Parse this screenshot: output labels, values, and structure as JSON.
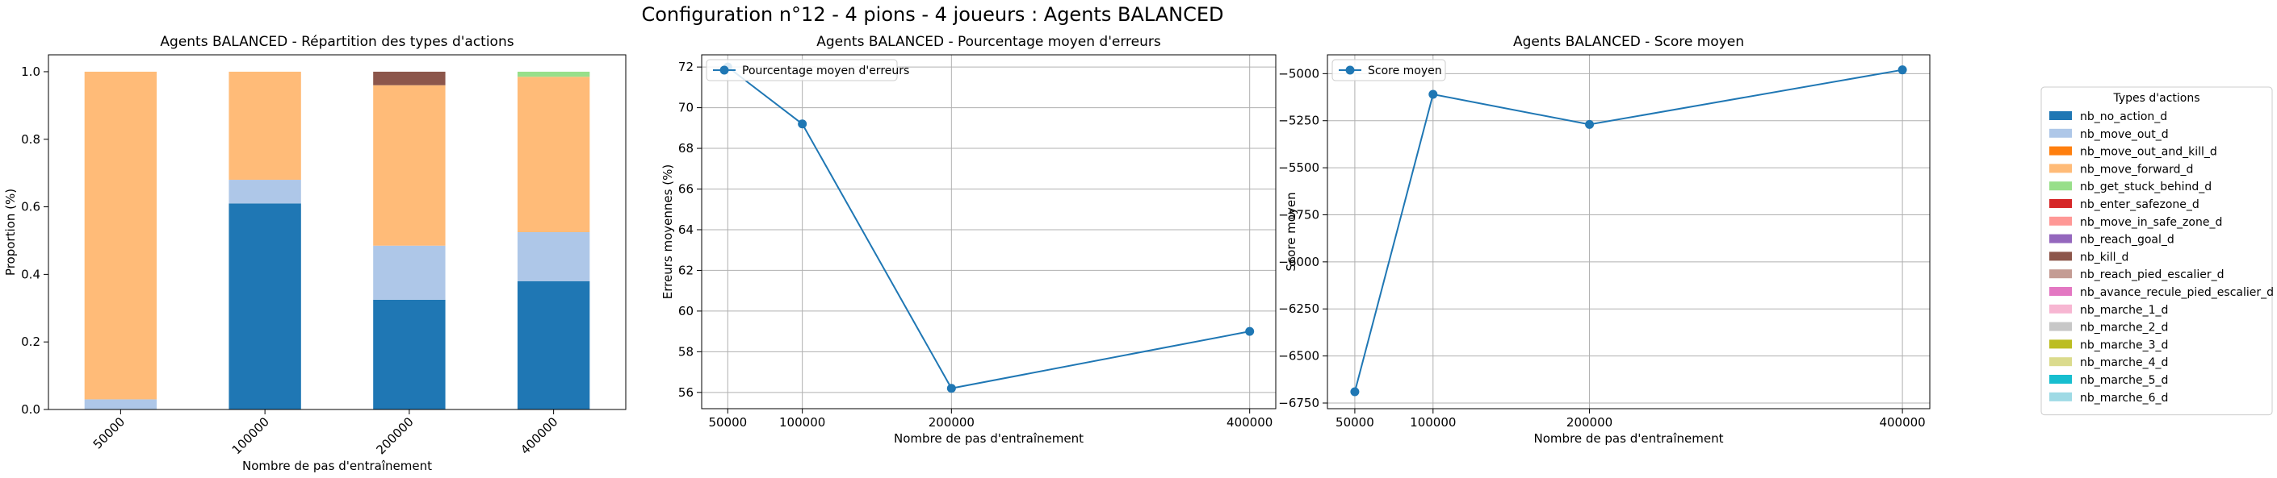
{
  "suptitle": "Configuration n°12 - 4 pions - 4 joueurs : Agents BALANCED",
  "chart_data": [
    {
      "type": "bar",
      "stacked": true,
      "title": "Agents BALANCED - Répartition des types d'actions",
      "xlabel": "Nombre de pas d'entraînement",
      "ylabel": "Proportion (%)",
      "ylim": [
        0,
        1.05
      ],
      "yticks": [
        "0.0",
        "0.2",
        "0.4",
        "0.6",
        "0.8",
        "1.0"
      ],
      "categories": [
        "50000",
        "100000",
        "200000",
        "400000"
      ],
      "series": [
        {
          "name": "nb_no_action_d",
          "color": "#1f77b4",
          "values": [
            0.0,
            0.61,
            0.325,
            0.38
          ]
        },
        {
          "name": "nb_move_out_d",
          "color": "#aec7e8",
          "values": [
            0.03,
            0.07,
            0.16,
            0.145
          ]
        },
        {
          "name": "nb_move_out_and_kill_d",
          "color": "#ff7f0e",
          "values": [
            0,
            0,
            0,
            0
          ]
        },
        {
          "name": "nb_move_forward_d",
          "color": "#ffbb78",
          "values": [
            0.97,
            0.32,
            0.475,
            0.46
          ]
        },
        {
          "name": "nb_get_stuck_behind_d",
          "color": "#98df8a",
          "values": [
            0,
            0,
            0,
            0.015
          ]
        },
        {
          "name": "nb_enter_safezone_d",
          "color": "#d62728",
          "values": [
            0,
            0,
            0,
            0
          ]
        },
        {
          "name": "nb_move_in_safe_zone_d",
          "color": "#ff9896",
          "values": [
            0,
            0,
            0,
            0
          ]
        },
        {
          "name": "nb_reach_goal_d",
          "color": "#9467bd",
          "values": [
            0,
            0,
            0,
            0
          ]
        },
        {
          "name": "nb_kill_d",
          "color": "#8c564b",
          "values": [
            0,
            0,
            0.04,
            0
          ]
        },
        {
          "name": "nb_reach_pied_escalier_d",
          "color": "#c49c94",
          "values": [
            0,
            0,
            0,
            0
          ]
        },
        {
          "name": "nb_avance_recule_pied_escalier_d",
          "color": "#e377c2",
          "values": [
            0,
            0,
            0,
            0
          ]
        },
        {
          "name": "nb_marche_1_d",
          "color": "#f7b6d2",
          "values": [
            0,
            0,
            0,
            0
          ]
        },
        {
          "name": "nb_marche_2_d",
          "color": "#c7c7c7",
          "values": [
            0,
            0,
            0,
            0
          ]
        },
        {
          "name": "nb_marche_3_d",
          "color": "#bcbd22",
          "values": [
            0,
            0,
            0,
            0
          ]
        },
        {
          "name": "nb_marche_4_d",
          "color": "#dbdb8d",
          "values": [
            0,
            0,
            0,
            0
          ]
        },
        {
          "name": "nb_marche_5_d",
          "color": "#17becf",
          "values": [
            0,
            0,
            0,
            0
          ]
        },
        {
          "name": "nb_marche_6_d",
          "color": "#9edae5",
          "values": [
            0,
            0,
            0,
            0
          ]
        }
      ]
    },
    {
      "type": "line",
      "title": "Agents BALANCED - Pourcentage moyen d'erreurs",
      "xlabel": "Nombre de pas d'entraînement",
      "ylabel": "Erreurs moyennes (%)",
      "x": [
        50000,
        100000,
        200000,
        400000
      ],
      "xticks": [
        50000,
        100000,
        200000,
        400000
      ],
      "xlim": [
        32500,
        417500
      ],
      "ylim": [
        55.2,
        72.6
      ],
      "yticks": [
        56,
        58,
        60,
        62,
        64,
        66,
        68,
        70,
        72
      ],
      "grid": true,
      "legend": "upper left",
      "series": [
        {
          "name": "Pourcentage moyen d'erreurs",
          "color": "#1f77b4",
          "values": [
            72.0,
            69.2,
            56.2,
            59.0
          ]
        }
      ]
    },
    {
      "type": "line",
      "title": "Agents BALANCED - Score moyen",
      "xlabel": "Nombre de pas d'entraînement",
      "ylabel": "Score moyen",
      "x": [
        50000,
        100000,
        200000,
        400000
      ],
      "xticks": [
        50000,
        100000,
        200000,
        400000
      ],
      "xlim": [
        32500,
        417500
      ],
      "ylim": [
        -6780,
        -4900
      ],
      "yticks": [
        -6750,
        -6500,
        -6250,
        -6000,
        -5750,
        -5500,
        -5250,
        -5000
      ],
      "grid": true,
      "legend": "upper left",
      "series": [
        {
          "name": "Score moyen",
          "color": "#1f77b4",
          "values": [
            -6690,
            -5110,
            -5270,
            -4980
          ]
        }
      ]
    }
  ],
  "legend_title": "Types d'actions"
}
